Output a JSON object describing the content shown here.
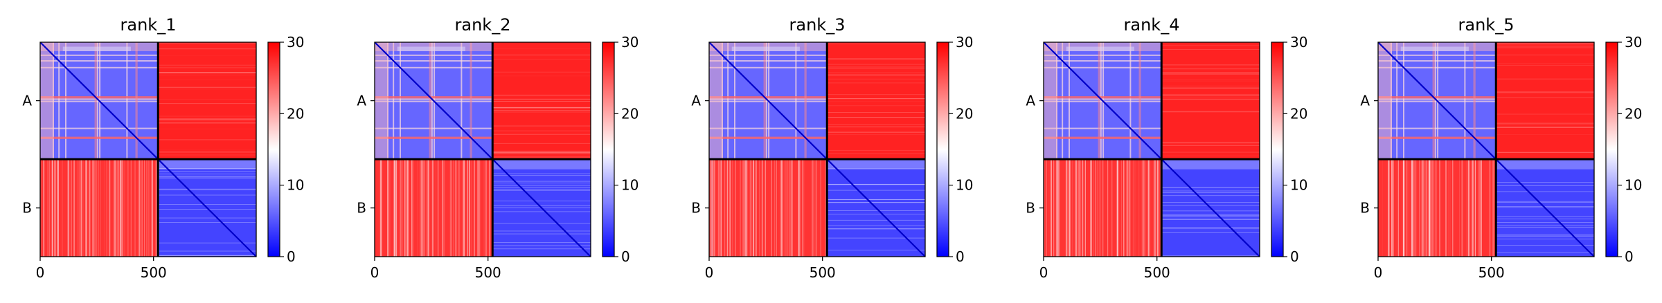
{
  "chart_data": {
    "type": "heatmap",
    "colormap": {
      "name": "bwr",
      "low": "#0000ff",
      "mid": "#ffffff",
      "high": "#ff0000"
    },
    "colorbar": {
      "vmin": 0,
      "vmax": 30,
      "ticks": [
        0,
        10,
        20,
        30
      ]
    },
    "panels": [
      {
        "title": "rank_1"
      },
      {
        "title": "rank_2"
      },
      {
        "title": "rank_3"
      },
      {
        "title": "rank_4"
      },
      {
        "title": "rank_5"
      }
    ],
    "chains": [
      {
        "label": "A",
        "start": 0,
        "end": 520
      },
      {
        "label": "B",
        "start": 520,
        "end": 953
      }
    ],
    "x_ticks": [
      0,
      500
    ],
    "x_range": [
      0,
      953
    ],
    "y_range": [
      0,
      953
    ],
    "boundary_color": "#000000",
    "description_values": {
      "intra_chain_error": "low (blue, ~0-8)",
      "inter_chain_error": "high (red, ~25-30)"
    }
  }
}
